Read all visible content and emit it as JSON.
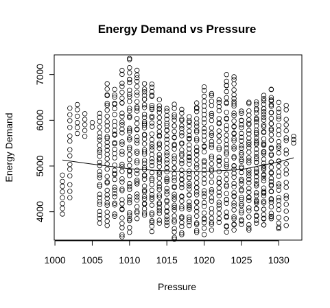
{
  "chart_data": {
    "type": "scatter",
    "title": "Energy Demand vs Pressure",
    "xlabel": "Pressure",
    "ylabel": "Energy Demand",
    "xlim": [
      999.9,
      1033.1
    ],
    "ylim": [
      3380,
      7430
    ],
    "xticks": [
      1000,
      1005,
      1010,
      1015,
      1020,
      1025,
      1030
    ],
    "yticks": [
      4000,
      5000,
      6000,
      7000
    ],
    "x_columns": [
      1001,
      1002,
      1003,
      1004,
      1005,
      1006,
      1007,
      1008,
      1009,
      1010,
      1011,
      1012,
      1013,
      1014,
      1015,
      1016,
      1017,
      1018,
      1019,
      1020,
      1021,
      1022,
      1023,
      1024,
      1025,
      1026,
      1027,
      1028,
      1029,
      1030,
      1031,
      1032
    ],
    "column_ranges": [
      [
        3950,
        4800
      ],
      [
        4300,
        6300
      ],
      [
        5700,
        6350
      ],
      [
        5650,
        6150
      ],
      [
        5850,
        5950
      ],
      [
        3750,
        6150
      ],
      [
        3700,
        6800
      ],
      [
        3900,
        6700
      ],
      [
        3450,
        7100
      ],
      [
        3550,
        7350
      ],
      [
        3850,
        7150
      ],
      [
        3900,
        6800
      ],
      [
        3550,
        6850
      ],
      [
        3750,
        6450
      ],
      [
        3650,
        6300
      ],
      [
        3400,
        6350
      ],
      [
        3500,
        6250
      ],
      [
        3700,
        6100
      ],
      [
        3550,
        6400
      ],
      [
        3500,
        6750
      ],
      [
        3600,
        6600
      ],
      [
        3750,
        6450
      ],
      [
        3550,
        7000
      ],
      [
        3600,
        6950
      ],
      [
        3700,
        6200
      ],
      [
        3600,
        6400
      ],
      [
        3750,
        6400
      ],
      [
        3700,
        6550
      ],
      [
        3800,
        6700
      ],
      [
        3600,
        6400
      ],
      [
        3700,
        6350
      ],
      [
        5500,
        5650
      ]
    ],
    "points_per_column": [
      8,
      14,
      6,
      5,
      2,
      26,
      32,
      30,
      34,
      40,
      34,
      38,
      36,
      34,
      34,
      36,
      32,
      32,
      34,
      34,
      30,
      30,
      36,
      40,
      32,
      34,
      42,
      44,
      40,
      28,
      20,
      3
    ],
    "trend_line": {
      "x": [
        1001,
        1005,
        1010,
        1015,
        1020,
        1025,
        1030,
        1032
      ],
      "y": [
        5130,
        5040,
        4940,
        4890,
        4880,
        4920,
        5090,
        5180
      ]
    },
    "grid": false,
    "legend": "none"
  }
}
